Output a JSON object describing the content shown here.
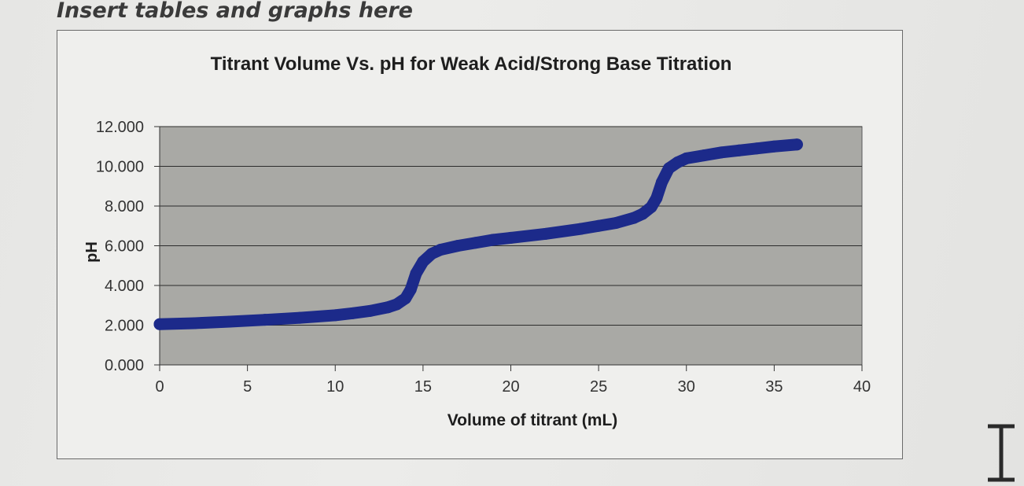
{
  "document": {
    "heading": "Insert tables and graphs here"
  },
  "chart_data": {
    "type": "line",
    "title": "Titrant Volume Vs. pH for Weak Acid/Strong Base Titration",
    "xlabel": "Volume of titrant (mL)",
    "ylabel": "pH",
    "xlim": [
      0,
      40
    ],
    "ylim": [
      0,
      12
    ],
    "x_ticks": [
      0,
      5,
      10,
      15,
      20,
      25,
      30,
      35,
      40
    ],
    "y_ticks": [
      0,
      2,
      4,
      6,
      8,
      10,
      12
    ],
    "x_tick_labels": [
      "0",
      "5",
      "10",
      "15",
      "20",
      "25",
      "30",
      "35",
      "40"
    ],
    "y_tick_labels": [
      "0.000",
      "2.000",
      "4.000",
      "6.000",
      "8.000",
      "10.000",
      "12.000"
    ],
    "grid": true,
    "legend": "none",
    "plot_background": "#a9a9a5",
    "series": [
      {
        "color": "#1c2a8a",
        "x": [
          0,
          2,
          4,
          6,
          8,
          10,
          11,
          12,
          13,
          13.5,
          14,
          14.3,
          14.6,
          15,
          15.5,
          16,
          17,
          18,
          19,
          20,
          22,
          24,
          25,
          26,
          27,
          27.5,
          28,
          28.3,
          28.6,
          29,
          29.5,
          30,
          31,
          32,
          33,
          34,
          35,
          36.3
        ],
        "y": [
          2.05,
          2.1,
          2.18,
          2.27,
          2.37,
          2.5,
          2.6,
          2.72,
          2.9,
          3.05,
          3.35,
          3.8,
          4.6,
          5.2,
          5.6,
          5.8,
          6.0,
          6.15,
          6.3,
          6.4,
          6.6,
          6.85,
          7.0,
          7.15,
          7.4,
          7.6,
          7.95,
          8.4,
          9.2,
          9.9,
          10.2,
          10.4,
          10.55,
          10.7,
          10.8,
          10.9,
          11.0,
          11.1
        ]
      }
    ]
  }
}
